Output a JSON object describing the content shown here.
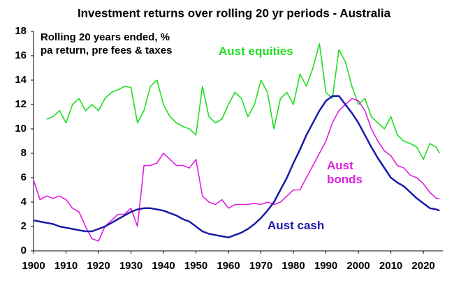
{
  "chart_data": {
    "type": "line",
    "title": "Investment returns over rolling 20 yr periods - Australia",
    "note": "Rolling 20 years ended, % pa return, pre fees & taxes",
    "x": [
      1900,
      1902,
      1904,
      1906,
      1908,
      1910,
      1912,
      1914,
      1916,
      1918,
      1920,
      1922,
      1924,
      1926,
      1928,
      1930,
      1932,
      1934,
      1936,
      1938,
      1940,
      1942,
      1944,
      1946,
      1948,
      1950,
      1952,
      1954,
      1956,
      1958,
      1960,
      1962,
      1964,
      1966,
      1968,
      1970,
      1972,
      1974,
      1976,
      1978,
      1980,
      1982,
      1984,
      1986,
      1988,
      1990,
      1992,
      1994,
      1996,
      1998,
      2000,
      2002,
      2004,
      2006,
      2008,
      2010,
      2012,
      2014,
      2016,
      2018,
      2020,
      2022,
      2024,
      2025
    ],
    "series": [
      {
        "name": "Aust equities",
        "color": "#22dd22",
        "values": [
          null,
          null,
          10.8,
          11.0,
          11.5,
          10.5,
          12.0,
          12.5,
          11.5,
          12.0,
          11.5,
          12.5,
          13.0,
          13.2,
          13.5,
          13.4,
          10.5,
          11.5,
          13.5,
          14.0,
          12.0,
          11.0,
          10.5,
          10.2,
          10.0,
          9.5,
          13.5,
          11.0,
          10.5,
          10.8,
          12.0,
          13.0,
          12.5,
          11.0,
          12.0,
          14.0,
          13.0,
          10.0,
          12.5,
          13.0,
          12.0,
          14.5,
          13.5,
          15.0,
          17.0,
          13.0,
          12.5,
          16.5,
          15.5,
          13.5,
          12.0,
          12.5,
          11.0,
          10.5,
          10.0,
          11.0,
          9.5,
          9.0,
          8.8,
          8.5,
          7.5,
          8.8,
          8.5,
          8.0
        ]
      },
      {
        "name": "Aust bonds",
        "color": "#e020e0",
        "values": [
          5.8,
          4.2,
          4.5,
          4.3,
          4.5,
          4.2,
          3.5,
          3.2,
          2.0,
          1.0,
          0.8,
          2.0,
          2.5,
          3.0,
          3.0,
          3.5,
          2.0,
          7.0,
          7.0,
          7.2,
          8.0,
          7.5,
          7.0,
          7.0,
          6.8,
          7.5,
          4.5,
          4.0,
          3.8,
          4.2,
          3.5,
          3.8,
          3.8,
          3.8,
          3.9,
          3.8,
          4.0,
          3.8,
          4.0,
          4.5,
          5.0,
          5.0,
          6.0,
          7.0,
          8.0,
          9.0,
          10.5,
          11.5,
          12.0,
          12.5,
          12.3,
          11.5,
          10.0,
          9.0,
          8.2,
          7.8,
          7.0,
          6.8,
          6.2,
          6.0,
          5.5,
          4.8,
          4.3,
          4.3
        ]
      },
      {
        "name": "Aust cash",
        "color": "#1a1aaa",
        "values": [
          2.5,
          2.4,
          2.3,
          2.2,
          2.0,
          1.9,
          1.8,
          1.7,
          1.6,
          1.6,
          1.8,
          2.0,
          2.3,
          2.6,
          2.9,
          3.2,
          3.4,
          3.5,
          3.5,
          3.4,
          3.3,
          3.1,
          2.9,
          2.6,
          2.4,
          2.0,
          1.6,
          1.4,
          1.3,
          1.2,
          1.1,
          1.3,
          1.5,
          1.8,
          2.2,
          2.7,
          3.3,
          4.0,
          5.0,
          6.0,
          7.2,
          8.3,
          9.5,
          10.5,
          11.5,
          12.3,
          12.7,
          12.7,
          12.0,
          11.3,
          10.5,
          9.5,
          8.5,
          7.6,
          6.8,
          6.0,
          5.6,
          5.3,
          4.8,
          4.3,
          3.9,
          3.5,
          3.4,
          3.3
        ]
      }
    ],
    "xlim": [
      1900,
      2026
    ],
    "xticks": [
      1900,
      1910,
      1920,
      1930,
      1940,
      1950,
      1960,
      1970,
      1980,
      1990,
      2000,
      2010,
      2020
    ],
    "ylim": [
      0,
      18
    ],
    "yticks": [
      0,
      2,
      4,
      6,
      8,
      10,
      12,
      14,
      16,
      18
    ],
    "grid": false
  }
}
